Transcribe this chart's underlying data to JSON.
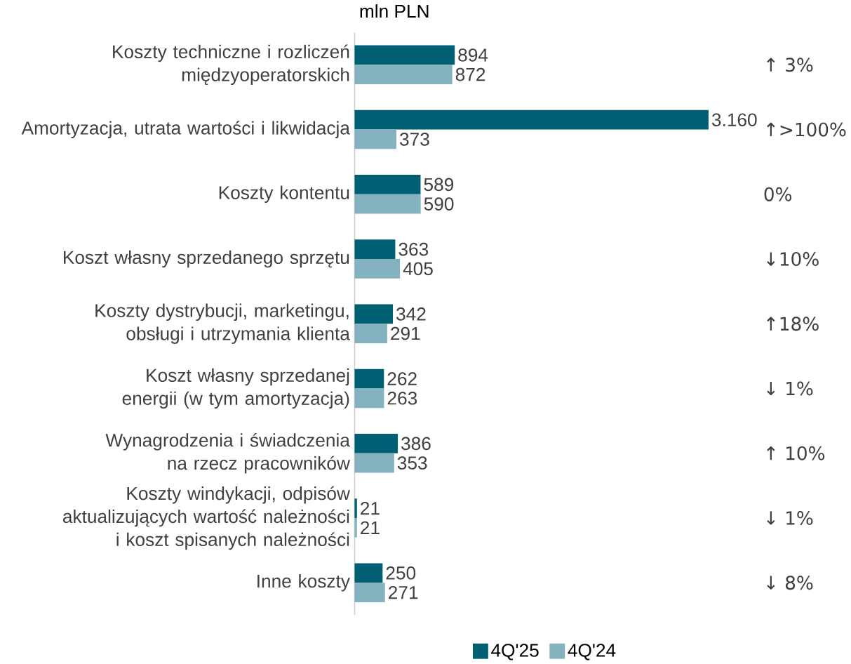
{
  "chart_data": {
    "type": "bar",
    "orientation": "horizontal",
    "xlabel": "mln PLN",
    "categories": [
      "Koszty techniczne i rozliczeń międzyoperatorskich",
      "Amortyzacja, utrata wartości i likwidacja",
      "Koszty kontentu",
      "Koszt własny sprzedanego sprzętu",
      "Koszty dystrybucji, marketingu, obsługi i utrzymania klienta",
      "Koszt własny sprzedanej energii (w tym amortyzacja)",
      "Wynagrodzenia i świadczenia na rzecz pracowników",
      "Koszty windykacji, odpisów aktualizujących wartość należności i koszt spisanych należności",
      "Inne koszty"
    ],
    "series": [
      {
        "name": "4Q'25",
        "color": "#005f73",
        "values": [
          894,
          3160,
          589,
          363,
          342,
          262,
          386,
          21,
          250
        ],
        "value_labels": [
          "894",
          "3.160",
          "589",
          "363",
          "342",
          "262",
          "386",
          "21",
          "250"
        ]
      },
      {
        "name": "4Q'24",
        "color": "#84b3bf",
        "values": [
          872,
          373,
          590,
          405,
          291,
          263,
          353,
          21,
          271
        ],
        "value_labels": [
          "872",
          "373",
          "590",
          "405",
          "291",
          "263",
          "353",
          "21",
          "271"
        ]
      }
    ],
    "annotations": [
      "↑ 3%",
      "↑>100%",
      "0%",
      "↓10%",
      "↑18%",
      "↓ 1%",
      "↑ 10%",
      "↓ 1%",
      "↓ 8%"
    ],
    "legend": "bottom"
  }
}
